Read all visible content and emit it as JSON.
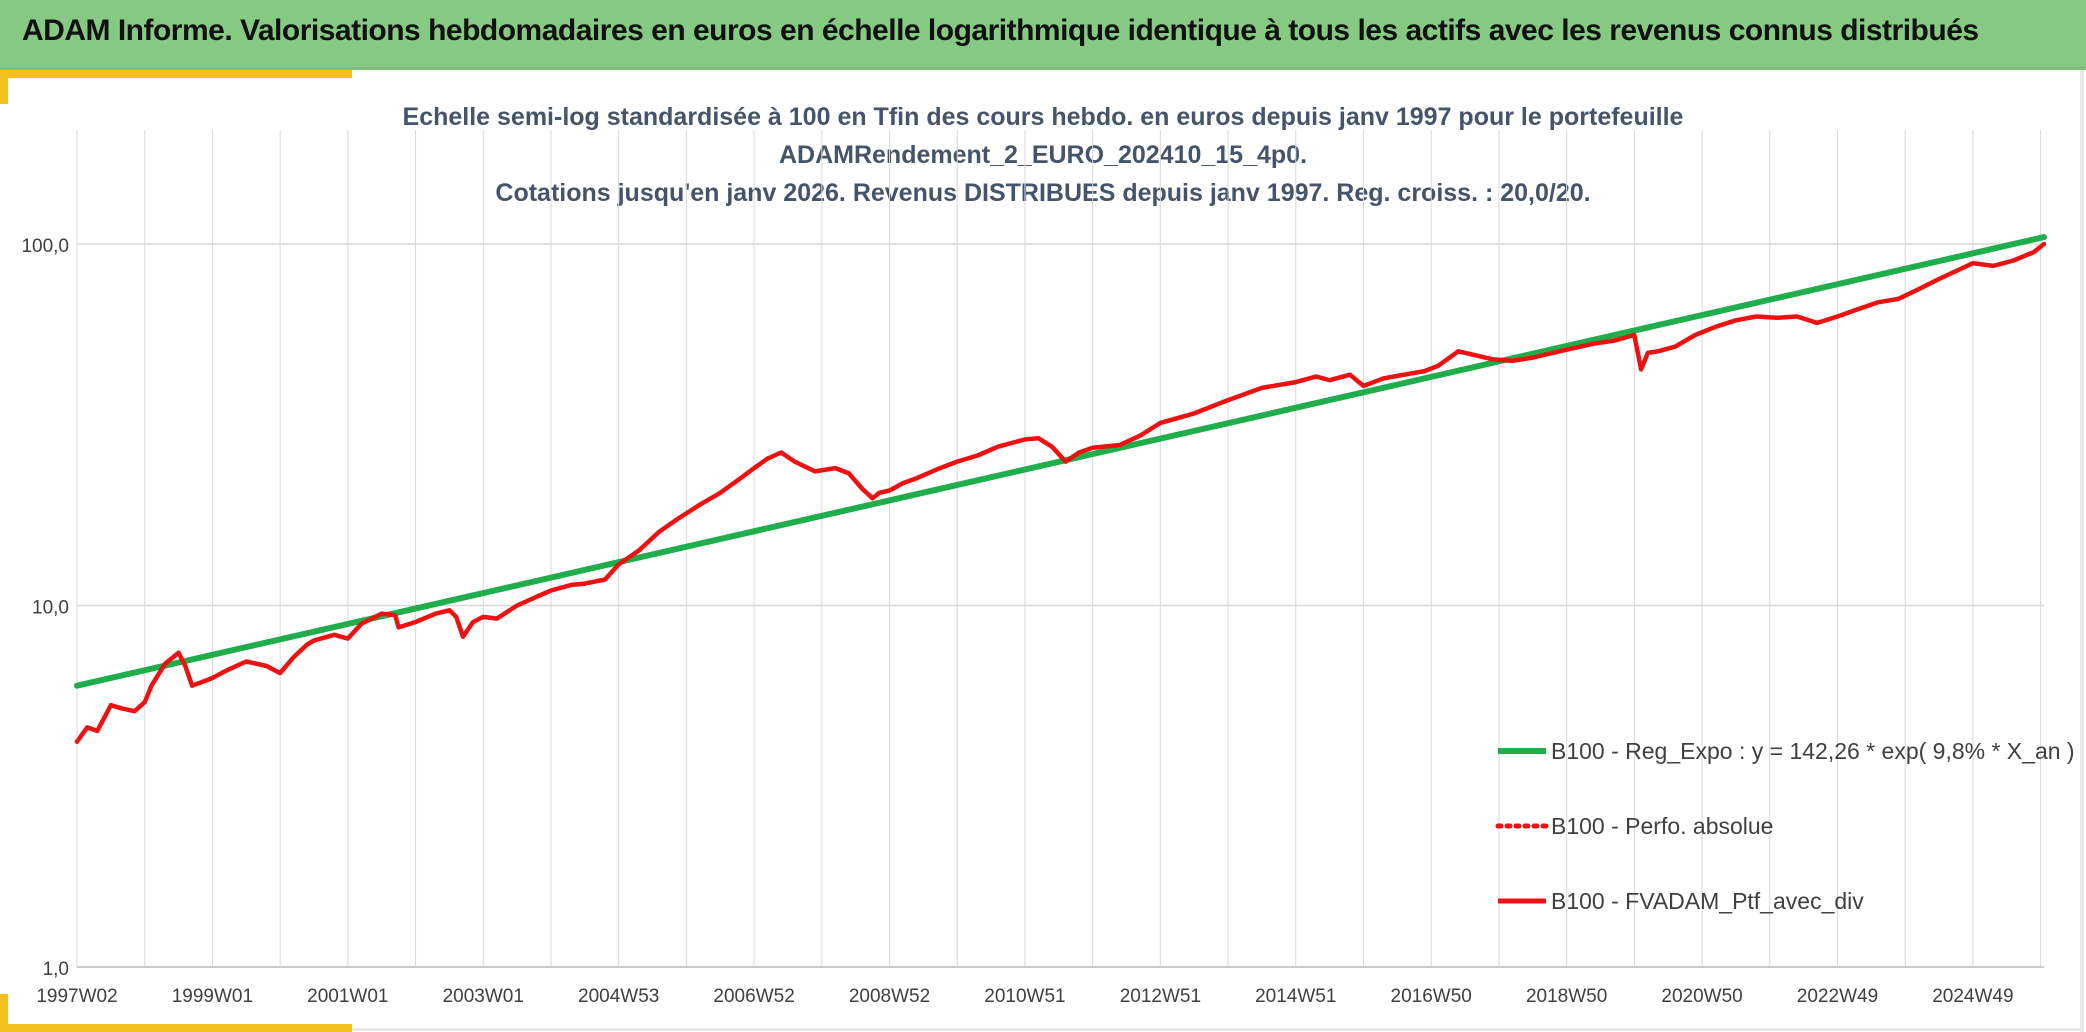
{
  "header": {
    "title": "ADAM Informe. Valorisations hebdomadaires en euros en échelle logarithmique identique à tous les actifs avec les revenus connus distribués"
  },
  "colors": {
    "banner": "#86c982",
    "accent": "#f4c020",
    "regression": "#1fae4b",
    "portfolio": "#ee1111",
    "title_text": "#44546a",
    "grid": "#d9d9d9"
  },
  "chart_data": {
    "type": "line",
    "title_lines": [
      "Echelle semi-log standardisée à 100 en Tfin des cours hebdo. en euros depuis janv 1997 pour le portefeuille",
      "ADAMRendement_2_EURO_202410_15_4p0.",
      "Cotations jusqu'en janv 2026. Revenus DISTRIBUES depuis janv 1997. Reg. croiss. : 20,0/20."
    ],
    "y_scale": "log",
    "ylim": [
      1,
      100
    ],
    "y_ticks": [
      1,
      10,
      100
    ],
    "y_tick_labels": [
      "1,0",
      "10,0",
      "100,0"
    ],
    "x_range": [
      1997.0,
      2026.05
    ],
    "x_tick_labels": [
      "1997W02",
      "1999W01",
      "2001W01",
      "2003W01",
      "2004W53",
      "2006W52",
      "2008W52",
      "2010W51",
      "2012W51",
      "2014W51",
      "2016W50",
      "2018W50",
      "2020W50",
      "2022W49",
      "2024W49"
    ],
    "x_tick_values": [
      1997.0,
      1999.0,
      2001.0,
      2003.0,
      2005.0,
      2007.0,
      2009.0,
      2011.0,
      2013.0,
      2015.0,
      2017.0,
      2019.0,
      2021.0,
      2023.0,
      2025.0
    ],
    "legend_position": "bottom-right",
    "grid": true,
    "series": [
      {
        "name": "B100 - Reg_Expo : y = 142,26 * exp( 9,8% *  X_an )",
        "style": "solid-green",
        "x": [
          1997.0,
          2026.05
        ],
        "y": [
          6.0,
          104.5
        ]
      },
      {
        "name": "B100 - Perfo. absolue",
        "style": "dotted-red",
        "x": [],
        "y": []
      },
      {
        "name": "B100 - FVADAM_Ptf_avec_div",
        "style": "solid-red",
        "x": [
          1997.0,
          1997.15,
          1997.3,
          1997.5,
          1997.65,
          1997.85,
          1998.0,
          1998.1,
          1998.3,
          1998.5,
          1998.6,
          1998.7,
          1998.9,
          1999.0,
          1999.2,
          1999.5,
          1999.8,
          2000.0,
          2000.2,
          2000.4,
          2000.5,
          2000.8,
          2001.0,
          2001.2,
          2001.5,
          2001.7,
          2001.75,
          2002.0,
          2002.3,
          2002.5,
          2002.6,
          2002.7,
          2002.85,
          2003.0,
          2003.2,
          2003.5,
          2003.8,
          2004.0,
          2004.3,
          2004.5,
          2004.8,
          2005.0,
          2005.3,
          2005.6,
          2005.9,
          2006.2,
          2006.5,
          2006.8,
          2007.0,
          2007.2,
          2007.4,
          2007.6,
          2007.9,
          2008.2,
          2008.4,
          2008.6,
          2008.75,
          2008.85,
          2009.0,
          2009.2,
          2009.4,
          2009.7,
          2010.0,
          2010.3,
          2010.6,
          2011.0,
          2011.2,
          2011.4,
          2011.6,
          2011.8,
          2012.0,
          2012.4,
          2012.7,
          2013.0,
          2013.5,
          2014.0,
          2014.5,
          2015.0,
          2015.3,
          2015.5,
          2015.8,
          2016.0,
          2016.3,
          2016.6,
          2016.9,
          2017.1,
          2017.4,
          2017.6,
          2017.9,
          2018.2,
          2018.5,
          2018.8,
          2019.1,
          2019.4,
          2019.7,
          2020.0,
          2020.1,
          2020.2,
          2020.35,
          2020.6,
          2020.9,
          2021.2,
          2021.5,
          2021.8,
          2022.1,
          2022.4,
          2022.7,
          2023.0,
          2023.3,
          2023.6,
          2023.9,
          2024.2,
          2024.5,
          2024.8,
          2025.0,
          2025.3,
          2025.6,
          2025.9,
          2026.05
        ],
        "y": [
          4.2,
          4.6,
          4.5,
          5.3,
          5.2,
          5.1,
          5.4,
          6.0,
          6.9,
          7.4,
          6.8,
          6.0,
          6.2,
          6.3,
          6.6,
          7.0,
          6.8,
          6.5,
          7.2,
          7.8,
          8.0,
          8.3,
          8.1,
          8.9,
          9.5,
          9.4,
          8.7,
          9.0,
          9.5,
          9.7,
          9.3,
          8.2,
          9.0,
          9.3,
          9.2,
          10.0,
          10.6,
          11.0,
          11.4,
          11.5,
          11.8,
          13.0,
          14.2,
          16.0,
          17.5,
          19.0,
          20.5,
          22.5,
          24.0,
          25.5,
          26.5,
          25.0,
          23.5,
          24.0,
          23.2,
          21.0,
          19.8,
          20.5,
          20.8,
          21.8,
          22.5,
          23.8,
          25.0,
          26.0,
          27.5,
          28.8,
          29.0,
          27.5,
          25.0,
          26.5,
          27.3,
          27.8,
          29.5,
          32.0,
          34.0,
          37.0,
          40.0,
          41.5,
          43.0,
          42.0,
          43.5,
          40.5,
          42.5,
          43.5,
          44.5,
          46.0,
          50.5,
          49.5,
          48.0,
          47.5,
          48.5,
          50.0,
          51.5,
          53.0,
          54.0,
          56.0,
          45.0,
          50.0,
          50.5,
          52.0,
          56.0,
          59.0,
          61.5,
          63.0,
          62.5,
          63.0,
          60.5,
          63.0,
          66.0,
          69.0,
          70.5,
          75.0,
          80.0,
          85.0,
          88.5,
          87.0,
          90.0,
          95.0,
          100.0
        ]
      }
    ]
  }
}
